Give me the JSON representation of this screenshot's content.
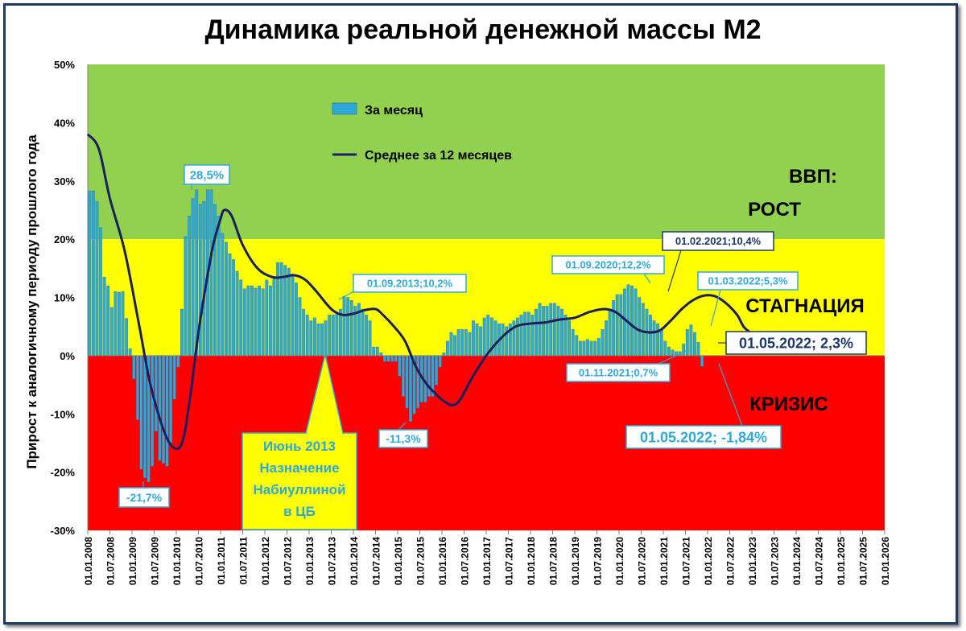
{
  "chart_data": {
    "type": "bar",
    "title": "Динамика реальной денежной массы М2",
    "ylabel": "Прирост к аналогичному периоду прошлого года",
    "ylim": [
      -30,
      50
    ],
    "y_ticks": [
      "50%",
      "40%",
      "30%",
      "20%",
      "10%",
      "0%",
      "-10%",
      "-20%",
      "-30%"
    ],
    "y_tick_values": [
      50,
      40,
      30,
      20,
      10,
      0,
      -10,
      -20,
      -30
    ],
    "x_ticks": [
      "01.01.2008",
      "01.07.2008",
      "01.01.2009",
      "01.07.2009",
      "01.01.2010",
      "01.07.2010",
      "01.01.2011",
      "01.07.2011",
      "01.01.2012",
      "01.07.2012",
      "01.01.2013",
      "01.07.2013",
      "01.01.2014",
      "01.07.2014",
      "01.01.2015",
      "01.07.2015",
      "01.01.2016",
      "01.07.2016",
      "01.01.2017",
      "01.07.2017",
      "01.01.2018",
      "01.07.2018",
      "01.01.2019",
      "01.07.2019",
      "01.01.2020",
      "01.07.2020",
      "01.01.2021",
      "01.07.2021",
      "01.01.2022",
      "01.07.2022",
      "01.01.2023",
      "01.07.2023",
      "01.01.2024",
      "01.07.2024",
      "01.01.2025",
      "01.07.2025",
      "01.01.2026"
    ],
    "zones": [
      {
        "from": 20,
        "to": 50,
        "color": "#92d050",
        "labels": [
          "ВВП:",
          "РОСТ"
        ]
      },
      {
        "from": 0,
        "to": 20,
        "color": "#ffff00",
        "labels": [
          "СТАГНАЦИЯ"
        ]
      },
      {
        "from": -30,
        "to": 0,
        "color": "#ff0000",
        "labels": [
          "КРИЗИС"
        ]
      }
    ],
    "series": [
      {
        "name": "За месяц",
        "kind": "bar",
        "color": "#2ea8d8",
        "x_start": "01.01.2008",
        "step": "month",
        "values": [
          28.3,
          28.3,
          26.5,
          22.0,
          13.5,
          12.0,
          8.3,
          11.0,
          10.9,
          11.0,
          6.4,
          1.2,
          -4.0,
          -11.0,
          -19.5,
          -21.0,
          -21.7,
          -19.0,
          -13.0,
          -18.0,
          -18.5,
          -19.0,
          -15.0,
          -7.5,
          -2.0,
          8.0,
          20.5,
          24.0,
          27.0,
          28.5,
          26.0,
          26.5,
          28.5,
          28.5,
          26.0,
          24.0,
          21.0,
          19.5,
          17.5,
          16.5,
          14.5,
          13.0,
          11.5,
          12.0,
          12.0,
          11.6,
          12.0,
          11.5,
          13.0,
          12.0,
          13.5,
          16.0,
          16.0,
          15.5,
          15.0,
          14.0,
          12.5,
          10.0,
          8.0,
          7.0,
          6.0,
          6.5,
          5.5,
          5.5,
          6.0,
          7.0,
          7.0,
          7.5,
          8.0,
          10.2,
          10.0,
          9.5,
          8.5,
          9.0,
          8.0,
          7.0,
          6.0,
          1.5,
          1.5,
          0.5,
          -1.0,
          -1.0,
          -1.0,
          -1.0,
          -3.5,
          -7.0,
          -9.0,
          -11.3,
          -10.0,
          -9.0,
          -8.0,
          -8.0,
          -7.0,
          -7.0,
          -5.0,
          -2.0,
          0.5,
          2.5,
          4.0,
          3.5,
          4.5,
          4.5,
          4.5,
          4.0,
          6.0,
          5.5,
          5.0,
          6.5,
          7.0,
          6.5,
          6.0,
          5.5,
          5.5,
          5.0,
          5.5,
          6.0,
          6.5,
          7.0,
          7.5,
          7.5,
          7.0,
          8.0,
          9.0,
          8.5,
          8.5,
          9.0,
          9.0,
          8.5,
          8.0,
          7.0,
          6.0,
          4.5,
          3.5,
          2.5,
          2.5,
          2.8,
          2.5,
          2.5,
          3.0,
          4.5,
          6.0,
          8.0,
          9.5,
          10.5,
          10.5,
          11.5,
          12.2,
          12.0,
          11.5,
          10.0,
          9.0,
          8.0,
          7.0,
          6.0,
          5.5,
          4.5,
          2.5,
          1.5,
          1.0,
          0.7,
          0.7,
          2.0,
          4.5,
          5.3,
          4.0,
          2.3,
          -1.84
        ]
      },
      {
        "name": "Среднее за 12 месяцев",
        "kind": "line",
        "color": "#1b1f5e",
        "points": [
          [
            0,
            38
          ],
          [
            3,
            35.5
          ],
          [
            6,
            27
          ],
          [
            10,
            18
          ],
          [
            14,
            5
          ],
          [
            17,
            -5
          ],
          [
            21,
            -13.5
          ],
          [
            24,
            -16
          ],
          [
            26,
            -14
          ],
          [
            28,
            -6
          ],
          [
            30,
            4
          ],
          [
            32,
            12
          ],
          [
            34,
            19
          ],
          [
            36,
            23.5
          ],
          [
            37,
            25
          ],
          [
            39,
            24
          ],
          [
            42,
            19
          ],
          [
            46,
            15
          ],
          [
            50,
            13.5
          ],
          [
            53,
            13.5
          ],
          [
            56,
            13.8
          ],
          [
            59,
            13
          ],
          [
            62,
            11
          ],
          [
            66,
            8
          ],
          [
            69,
            7
          ],
          [
            72,
            7.2
          ],
          [
            75,
            7.8
          ],
          [
            78,
            8
          ],
          [
            80,
            7
          ],
          [
            83,
            5
          ],
          [
            86,
            2.5
          ],
          [
            89,
            -2
          ],
          [
            92,
            -5
          ],
          [
            95,
            -7
          ],
          [
            97,
            -8
          ],
          [
            99,
            -8.5
          ],
          [
            101,
            -7.5
          ],
          [
            104,
            -4
          ],
          [
            108,
            0
          ],
          [
            112,
            3
          ],
          [
            116,
            5
          ],
          [
            120,
            5.5
          ],
          [
            124,
            5.7
          ],
          [
            128,
            6.2
          ],
          [
            132,
            6.5
          ],
          [
            136,
            7.5
          ],
          [
            140,
            8
          ],
          [
            143,
            7.5
          ],
          [
            146,
            6
          ],
          [
            149,
            4.5
          ],
          [
            152,
            4
          ],
          [
            155,
            4.3
          ],
          [
            158,
            6
          ],
          [
            161,
            8
          ],
          [
            164,
            9.5
          ],
          [
            167,
            10.3
          ],
          [
            170,
            10.2
          ],
          [
            173,
            9
          ],
          [
            176,
            7
          ],
          [
            178,
            4.8
          ],
          [
            181,
            3.5
          ],
          [
            184,
            3
          ],
          [
            187,
            2.3
          ]
        ]
      }
    ],
    "annotations": [
      {
        "text": "28,5%",
        "style": "light"
      },
      {
        "text": "-21,7%",
        "style": "light"
      },
      {
        "text": "01.09.2013;10,2%",
        "style": "light"
      },
      {
        "text": "-11,3%",
        "style": "light"
      },
      {
        "text": "01.09.2020;12,2%",
        "style": "light"
      },
      {
        "text": "01.02.2021;10,4%",
        "style": "dark"
      },
      {
        "text": "01.03.2022;5,3%",
        "style": "light"
      },
      {
        "text": "01.11.2021;0,7%",
        "style": "light"
      },
      {
        "text": "01.05.2022; 2,3%",
        "style": "dark"
      },
      {
        "text": "01.05.2022; -1,84%",
        "style": "light"
      }
    ],
    "callout": {
      "lines": [
        "Июнь 2013",
        "Назначение",
        "Набиуллиной",
        "в ЦБ"
      ]
    },
    "legend_position": "top-left"
  }
}
